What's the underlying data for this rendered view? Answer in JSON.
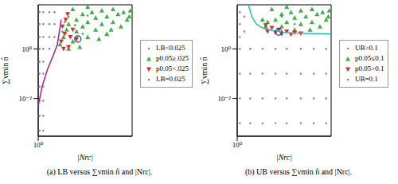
{
  "chart_data": [
    {
      "type": "scatter",
      "title": "(a) LB versus ∑νmin n̂ and |Nrc|.",
      "x_label": "|Nrc|",
      "y_label": "∑νmin n̂",
      "log": true,
      "legend": "right",
      "xlim": [
        1,
        30
      ],
      "ylim": [
        0.0003,
        60
      ],
      "xticks": [
        {
          "value": 1,
          "label": "10⁰"
        }
      ],
      "yticks": [
        {
          "value": 0.01,
          "label": "10⁻²"
        },
        {
          "value": 1,
          "label": "10⁰"
        }
      ],
      "series": [
        {
          "name": "LB<0.025",
          "color": "#8c8c8c",
          "marker": "dot",
          "x": [
            1.05,
            1.05,
            1.05,
            1.05,
            1.05,
            1.05,
            1.05,
            1.05,
            1.05,
            1.05,
            1.2,
            1.2,
            1.2,
            1.2,
            1.2,
            1.2,
            1.2,
            1.2,
            1.2,
            1.2,
            1.5,
            1.5,
            1.5,
            1.5,
            1.8,
            1.8,
            1.8
          ],
          "values": [
            0.0005,
            0.002,
            0.008,
            0.03,
            0.1,
            0.3,
            1,
            3,
            10,
            30,
            0.0005,
            0.002,
            0.008,
            0.03,
            0.1,
            0.3,
            1,
            3,
            10,
            30,
            1,
            3,
            10,
            30,
            3,
            10,
            30
          ]
        },
        {
          "name": "p0.05≥.025",
          "color": "#3cb043",
          "marker": "triangle-up",
          "x": [
            2.2,
            2.5,
            2.8,
            3,
            3.5,
            4,
            4,
            5,
            5,
            6,
            6,
            7,
            8,
            8,
            10,
            10,
            12,
            12,
            15,
            15,
            18,
            20,
            22,
            25,
            28,
            3,
            4.5,
            9,
            14,
            27,
            3.5,
            6
          ],
          "values": [
            1.5,
            3,
            6,
            10,
            2,
            15,
            5,
            25,
            8,
            3,
            12,
            30,
            6,
            18,
            35,
            10,
            4,
            20,
            40,
            12,
            25,
            8,
            30,
            15,
            35,
            1,
            1.2,
            2.5,
            6,
            20,
            40,
            50
          ]
        },
        {
          "name": "p0.05<.025",
          "color": "#e8262a",
          "marker": "triangle-down",
          "x": [
            2.3,
            2.6,
            2.4,
            3,
            3.2,
            2.7,
            3.5,
            2.9,
            4,
            2.5
          ],
          "values": [
            2,
            4,
            8,
            1.2,
            3,
            15,
            6,
            25,
            2.5,
            1
          ]
        },
        {
          "name": "LB=0.025",
          "color": "#3cb043",
          "marker": "dot",
          "x": [
            2.4,
            3,
            3.8,
            5,
            2.6,
            6
          ],
          "values": [
            5,
            20,
            9,
            4,
            12,
            22
          ]
        },
        {
          "type": "line",
          "color": "#a020a0",
          "line_style": "solid",
          "x": [
            1,
            1.15,
            1.4,
            1.7,
            2,
            2.3
          ],
          "values": [
            0.005,
            0.03,
            0.15,
            0.5,
            1.5,
            15
          ]
        },
        {
          "color": "#1f3f7f",
          "marker": "circle",
          "x": [
            4.2
          ],
          "values": [
            2.5
          ]
        }
      ]
    },
    {
      "type": "scatter",
      "title": "(b) UB versus ∑νmin n̂ and |Nrc|.",
      "x_label": "|Nrc|",
      "y_label": "∑νmin n̂",
      "log": true,
      "legend": "right",
      "xlim": [
        1,
        30
      ],
      "ylim": [
        0.0003,
        60
      ],
      "xticks": [
        {
          "value": 1,
          "label": "10⁰"
        }
      ],
      "yticks": [
        {
          "value": 0.01,
          "label": "10⁻²"
        },
        {
          "value": 1,
          "label": "10⁰"
        }
      ],
      "series": [
        {
          "name": "UB>0.1",
          "color": "#8c8c8c",
          "marker": "dot",
          "x": [
            1.1,
            1.6,
            2.5,
            4,
            6,
            10,
            16,
            25,
            1.1,
            1.6,
            2.5,
            4,
            6,
            10,
            16,
            25,
            1.1,
            1.6,
            2.5,
            4,
            6,
            10,
            16,
            25,
            1.1,
            1.6,
            2.5,
            4,
            6,
            10,
            16,
            25,
            1.1,
            1.1,
            1.1,
            1.3,
            1.3
          ],
          "values": [
            0.001,
            0.001,
            0.001,
            0.001,
            0.001,
            0.001,
            0.001,
            0.001,
            0.01,
            0.01,
            0.01,
            0.01,
            0.01,
            0.01,
            0.01,
            0.01,
            0.1,
            0.1,
            0.1,
            0.1,
            0.1,
            0.1,
            0.1,
            0.1,
            1,
            1,
            1,
            1,
            1,
            1,
            1,
            1,
            3,
            10,
            30,
            5,
            20
          ]
        },
        {
          "name": "p0.05≤0.1",
          "color": "#3cb043",
          "marker": "triangle-up",
          "x": [
            2.5,
            2.8,
            3,
            4,
            5,
            5,
            6,
            7,
            8,
            8,
            10,
            10,
            12,
            15,
            15,
            18,
            22,
            25,
            28,
            27,
            3.5,
            6,
            14,
            20
          ],
          "values": [
            15,
            8,
            12,
            15,
            25,
            8,
            12,
            30,
            6,
            18,
            35,
            10,
            20,
            40,
            12,
            25,
            30,
            15,
            35,
            20,
            40,
            50,
            6,
            8
          ]
        },
        {
          "name": "p0.05>0.1",
          "color": "#e8262a",
          "marker": "triangle-down",
          "x": [
            3,
            4,
            5,
            6,
            8,
            3.5,
            2.8,
            10,
            4.5,
            7
          ],
          "values": [
            5,
            4.5,
            4,
            5,
            4.5,
            7,
            9,
            4.2,
            6,
            3.8
          ]
        },
        {
          "name": "UB=0.1",
          "color": "#3cb043",
          "marker": "dot",
          "x": [
            3,
            5,
            2.5,
            8
          ],
          "values": [
            12,
            20,
            15,
            10
          ]
        },
        {
          "type": "line",
          "color": "#20c0c0",
          "line_style": "solid",
          "x": [
            1.5,
            1.7,
            2,
            2.5,
            3.5,
            6,
            12,
            30
          ],
          "values": [
            60,
            20,
            10,
            7,
            5.5,
            4.5,
            4.2,
            4
          ]
        },
        {
          "color": "#1f3f7f",
          "marker": "circle",
          "x": [
            4.5
          ],
          "values": [
            4.8
          ]
        }
      ]
    }
  ]
}
